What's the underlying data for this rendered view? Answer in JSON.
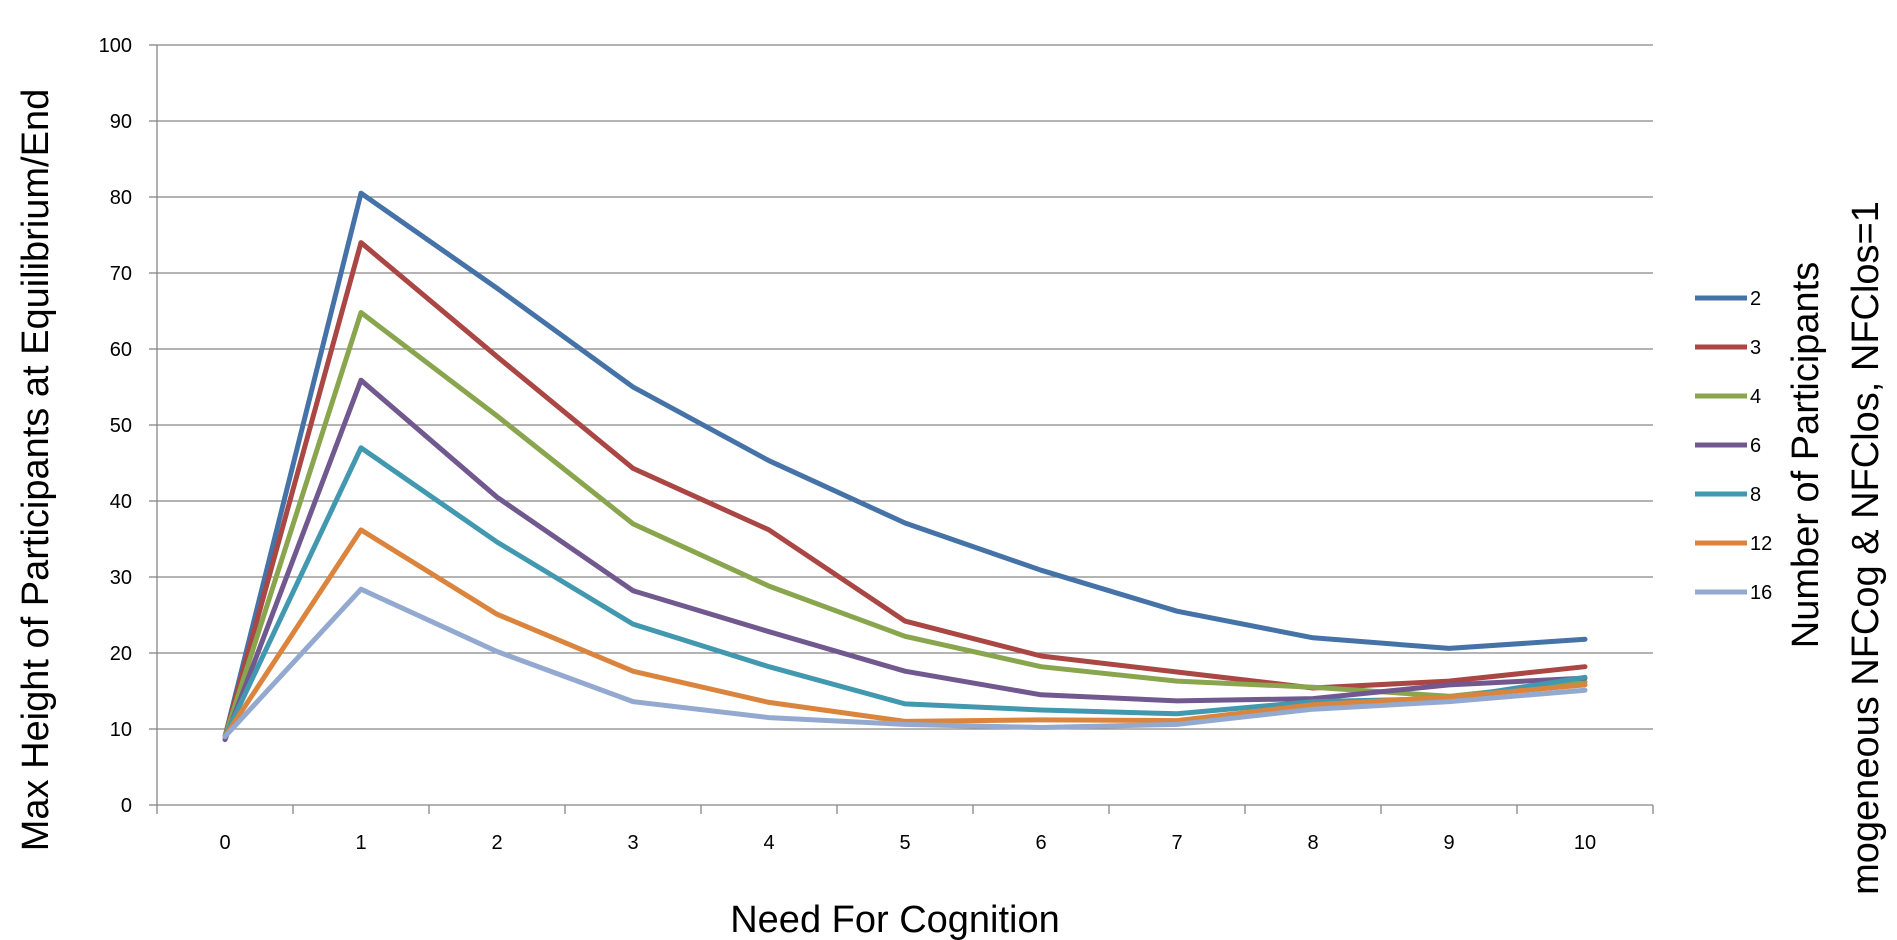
{
  "chart_data": {
    "type": "line",
    "title": "",
    "xlabel": "Need For Cognition",
    "ylabel": "Max Height of Participants at Equilibrium/End",
    "right_labels": [
      "Number of Participants",
      "mogeneous NFCog & NFClos, NFClos=1"
    ],
    "x": [
      0,
      1,
      2,
      3,
      4,
      5,
      6,
      7,
      8,
      9,
      10
    ],
    "xlim": [
      -0.5,
      10.5
    ],
    "ylim": [
      0,
      100
    ],
    "yticks": [
      0,
      10,
      20,
      30,
      40,
      50,
      60,
      70,
      80,
      90,
      100
    ],
    "grid": true,
    "legend_position": "right",
    "series": [
      {
        "name": "2",
        "color": "#4572A7",
        "values": [
          9,
          80.5,
          68,
          55,
          45.3,
          37.1,
          30.9,
          25.5,
          22,
          20.6,
          21.8
        ]
      },
      {
        "name": "3",
        "color": "#AA4643",
        "values": [
          9,
          74,
          59,
          44.3,
          36.2,
          24.2,
          19.6,
          17.5,
          15.4,
          16.3,
          18.2
        ]
      },
      {
        "name": "4",
        "color": "#89A54E",
        "values": [
          9,
          64.8,
          51.2,
          37,
          28.8,
          22.2,
          18.2,
          16.3,
          15.5,
          14.3,
          16.2
        ]
      },
      {
        "name": "6",
        "color": "#71588F",
        "values": [
          8.6,
          55.9,
          40.5,
          28.2,
          22.8,
          17.6,
          14.5,
          13.7,
          14,
          15.8,
          16.7
        ]
      },
      {
        "name": "8",
        "color": "#4198AF",
        "values": [
          9,
          47,
          34.6,
          23.8,
          18.2,
          13.3,
          12.5,
          12,
          13.6,
          14,
          16.8
        ]
      },
      {
        "name": "12",
        "color": "#DB843D",
        "values": [
          9,
          36.2,
          25.1,
          17.6,
          13.5,
          11,
          11.2,
          11.1,
          13.2,
          14.2,
          15.8
        ]
      },
      {
        "name": "16",
        "color": "#93A9CF",
        "values": [
          9,
          28.4,
          20.2,
          13.6,
          11.5,
          10.6,
          10.2,
          10.6,
          12.6,
          13.6,
          15.1
        ]
      }
    ]
  }
}
